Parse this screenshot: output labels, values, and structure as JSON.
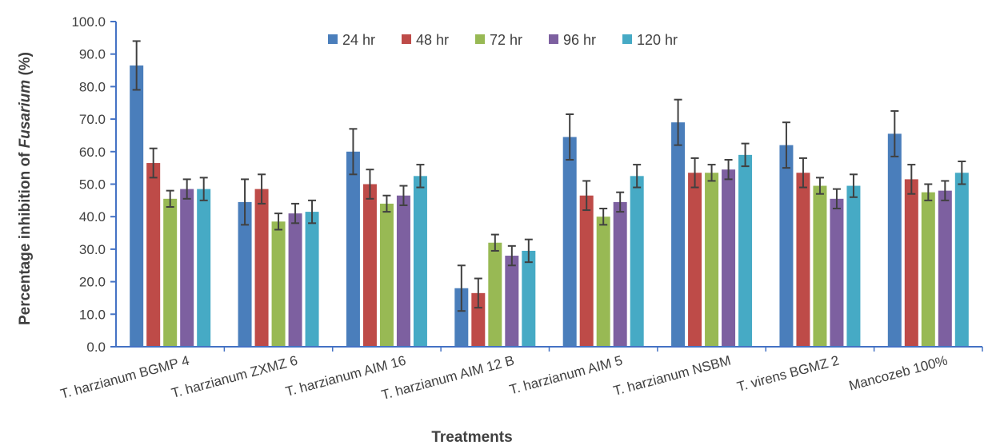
{
  "chart_data": {
    "type": "bar",
    "title": "",
    "xlabel": "Treatments",
    "ylabel_prefix": "Percentage inhibition of ",
    "ylabel_italic": "Fusarium",
    "ylabel_suffix": " (%)",
    "ylim": [
      0,
      100
    ],
    "yticks": [
      "0.0",
      "10.0",
      "20.0",
      "30.0",
      "40.0",
      "50.0",
      "60.0",
      "70.0",
      "80.0",
      "90.0",
      "100.0"
    ],
    "grid": false,
    "legend_position": "top",
    "categories": [
      "T. harzianum BGMP 4",
      "T. harzianum ZXMZ 6",
      "T. harzianum AIM 16",
      "T. harzianum AIM 12 B",
      "T. harzianum AIM 5",
      "T. harzianum NSBM",
      "T. virens BGMZ 2",
      "Mancozeb 100%"
    ],
    "series": [
      {
        "name": "24 hr",
        "color": "#4a7ebb",
        "values": [
          86.5,
          44.5,
          60.0,
          18.0,
          64.5,
          69.0,
          62.0,
          65.5
        ],
        "errors": [
          7.5,
          7.0,
          7.0,
          7.0,
          7.0,
          7.0,
          7.0,
          7.0
        ]
      },
      {
        "name": "48 hr",
        "color": "#be4b48",
        "values": [
          56.5,
          48.5,
          50.0,
          16.5,
          46.5,
          53.5,
          53.5,
          51.5
        ],
        "errors": [
          4.5,
          4.5,
          4.5,
          4.5,
          4.5,
          4.5,
          4.5,
          4.5
        ]
      },
      {
        "name": "72 hr",
        "color": "#98b954",
        "values": [
          45.5,
          38.5,
          44.0,
          32.0,
          40.0,
          53.5,
          49.5,
          47.5
        ],
        "errors": [
          2.5,
          2.5,
          2.5,
          2.5,
          2.5,
          2.5,
          2.5,
          2.5
        ]
      },
      {
        "name": "96 hr",
        "color": "#7d60a0",
        "values": [
          48.5,
          41.0,
          46.5,
          28.0,
          44.5,
          54.5,
          45.5,
          48.0
        ],
        "errors": [
          3.0,
          3.0,
          3.0,
          3.0,
          3.0,
          3.0,
          3.0,
          3.0
        ]
      },
      {
        "name": "120 hr",
        "color": "#46aac5",
        "values": [
          48.5,
          41.5,
          52.5,
          29.5,
          52.5,
          59.0,
          49.5,
          53.5
        ],
        "errors": [
          3.5,
          3.5,
          3.5,
          3.5,
          3.5,
          3.5,
          3.5,
          3.5
        ]
      }
    ]
  }
}
